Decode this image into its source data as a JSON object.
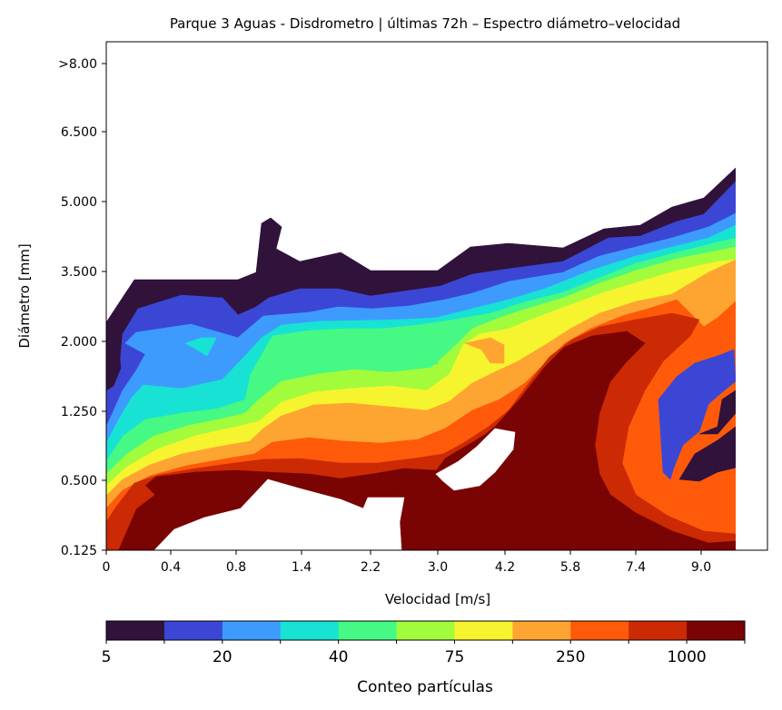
{
  "chart_data": {
    "type": "heatmap",
    "subtype": "filled-contour",
    "title": "Parque 3 Aguas - Disdrometro | últimas 72h – Espectro diámetro–velocidad",
    "xlabel": "Velocidad [m/s]",
    "ylabel": "Diámetro [mm]",
    "x_ticks": [
      "0",
      "0.4",
      "0.8",
      "1.4",
      "2.2",
      "3.0",
      "4.2",
      "5.8",
      "7.4",
      "9.0"
    ],
    "y_ticks": [
      "0.125",
      "0.500",
      "1.250",
      "2.000",
      "3.500",
      "5.000",
      "6.500",
      ">8.00"
    ],
    "grid": false,
    "colorbar": {
      "label": "Conteo partículas",
      "orientation": "horizontal",
      "position": "bottom",
      "tick_labels": [
        "5",
        "20",
        "40",
        "75",
        "250",
        "1000"
      ],
      "levels": [
        5,
        10,
        20,
        30,
        40,
        50,
        75,
        100,
        250,
        500,
        1000,
        2000,
        5000
      ],
      "colors": [
        "#30123b",
        "#3b47d4",
        "#3e9bfe",
        "#18e2d3",
        "#46f884",
        "#a2fc3c",
        "#f6f42e",
        "#fea531",
        "#fe5a0a",
        "#cb2a04",
        "#7a0403"
      ]
    },
    "bands": [
      {
        "label": "5–10",
        "color": "#30123b"
      },
      {
        "label": "10–20",
        "color": "#3b47d4"
      },
      {
        "label": "20–30",
        "color": "#3e9bfe"
      },
      {
        "label": "30–40",
        "color": "#18e2d3"
      },
      {
        "label": "40–50",
        "color": "#46f884"
      },
      {
        "label": "50–75",
        "color": "#a2fc3c"
      },
      {
        "label": "75–100",
        "color": "#f6f42e"
      },
      {
        "label": "100–250",
        "color": "#fea531"
      },
      {
        "label": "250–500",
        "color": "#fe5a0a"
      },
      {
        "label": "500–1000",
        "color": "#cb2a04"
      },
      {
        "label": ">1000",
        "color": "#7a0403"
      }
    ]
  }
}
